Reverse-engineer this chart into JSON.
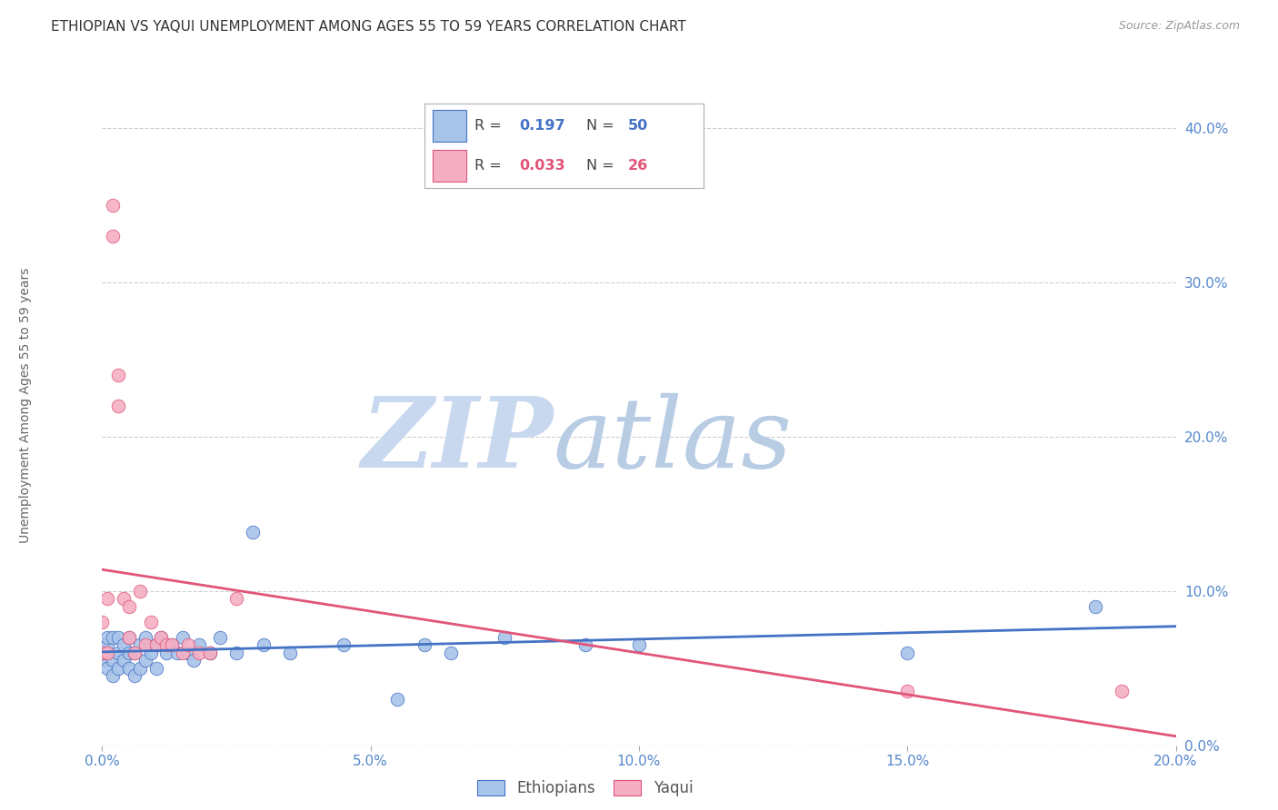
{
  "title": "ETHIOPIAN VS YAQUI UNEMPLOYMENT AMONG AGES 55 TO 59 YEARS CORRELATION CHART",
  "source": "Source: ZipAtlas.com",
  "ylabel": "Unemployment Among Ages 55 to 59 years",
  "legend_ethiopians": "Ethiopians",
  "legend_yaqui": "Yaqui",
  "r_ethiopians": 0.197,
  "n_ethiopians": 50,
  "r_yaqui": 0.033,
  "n_yaqui": 26,
  "color_ethiopians": "#a8c4e8",
  "color_yaqui": "#f4afc4",
  "line_color_ethiopians": "#4472c4",
  "line_color_yaqui": "#e05578",
  "watermark_zip_color": "#c8d8ee",
  "watermark_atlas_color": "#b8cce4",
  "xlim": [
    0.0,
    0.2
  ],
  "ylim": [
    0.0,
    0.42
  ],
  "yticks": [
    0.0,
    0.1,
    0.2,
    0.3,
    0.4
  ],
  "xticks": [
    0.0,
    0.05,
    0.1,
    0.15,
    0.2
  ],
  "ethiopians_x": [
    0.0,
    0.0,
    0.0,
    0.001,
    0.001,
    0.001,
    0.001,
    0.002,
    0.002,
    0.002,
    0.003,
    0.003,
    0.003,
    0.004,
    0.004,
    0.005,
    0.005,
    0.005,
    0.006,
    0.006,
    0.007,
    0.007,
    0.008,
    0.008,
    0.009,
    0.01,
    0.01,
    0.011,
    0.012,
    0.013,
    0.014,
    0.015,
    0.016,
    0.017,
    0.018,
    0.02,
    0.022,
    0.025,
    0.028,
    0.03,
    0.035,
    0.045,
    0.055,
    0.06,
    0.065,
    0.075,
    0.09,
    0.1,
    0.15,
    0.185
  ],
  "ethiopians_y": [
    0.055,
    0.06,
    0.065,
    0.05,
    0.06,
    0.065,
    0.07,
    0.045,
    0.055,
    0.07,
    0.05,
    0.06,
    0.07,
    0.055,
    0.065,
    0.05,
    0.06,
    0.07,
    0.045,
    0.06,
    0.05,
    0.065,
    0.055,
    0.07,
    0.06,
    0.05,
    0.065,
    0.07,
    0.06,
    0.065,
    0.06,
    0.07,
    0.06,
    0.055,
    0.065,
    0.06,
    0.07,
    0.06,
    0.138,
    0.065,
    0.06,
    0.065,
    0.03,
    0.065,
    0.06,
    0.07,
    0.065,
    0.065,
    0.06,
    0.09
  ],
  "yaqui_x": [
    0.0,
    0.0,
    0.001,
    0.001,
    0.002,
    0.002,
    0.003,
    0.003,
    0.004,
    0.005,
    0.005,
    0.006,
    0.007,
    0.008,
    0.009,
    0.01,
    0.011,
    0.012,
    0.013,
    0.015,
    0.016,
    0.018,
    0.02,
    0.025,
    0.15,
    0.19
  ],
  "yaqui_y": [
    0.08,
    0.06,
    0.095,
    0.06,
    0.35,
    0.33,
    0.24,
    0.22,
    0.095,
    0.07,
    0.09,
    0.06,
    0.1,
    0.065,
    0.08,
    0.065,
    0.07,
    0.065,
    0.065,
    0.06,
    0.065,
    0.06,
    0.06,
    0.095,
    0.035,
    0.035
  ],
  "background_color": "#ffffff",
  "grid_color": "#d0d0d0",
  "title_fontsize": 11,
  "tick_label_color": "#5588cc",
  "title_color": "#333333",
  "source_color": "#999999",
  "ylabel_color": "#666666"
}
